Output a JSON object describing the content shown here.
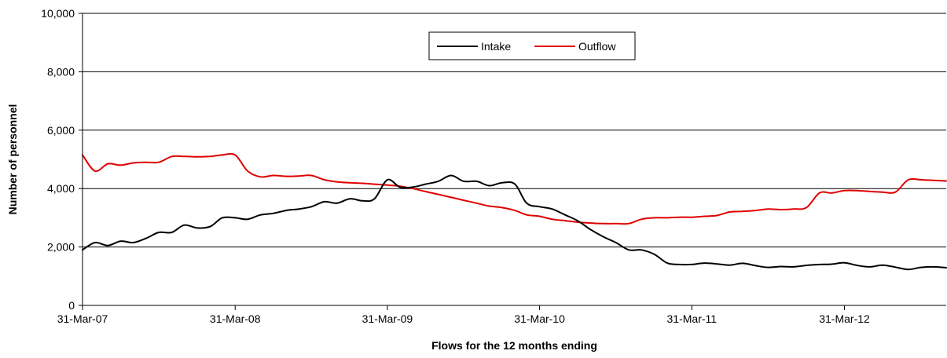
{
  "chart_data": {
    "type": "line",
    "title": "",
    "xlabel": "Flows for the 12 months ending",
    "ylabel": "Number of personnel",
    "ylim": [
      0,
      10000
    ],
    "yticks": [
      0,
      2000,
      4000,
      6000,
      8000,
      10000
    ],
    "ytick_labels": [
      "0",
      "2,000",
      "4,000",
      "6,000",
      "8,000",
      "10,000"
    ],
    "xlim": [
      "2007-03-31",
      "2012-11-30"
    ],
    "xticks": [
      "2007-03-31",
      "2008-03-31",
      "2009-03-31",
      "2010-03-31",
      "2011-03-31",
      "2012-03-31"
    ],
    "xtick_labels": [
      "31-Mar-07",
      "31-Mar-08",
      "31-Mar-09",
      "31-Mar-10",
      "31-Mar-11",
      "31-Mar-12"
    ],
    "grid": "horizontal",
    "legend_position": "top-center",
    "colors": {
      "Intake": "#000000",
      "Outflow": "#e00000"
    },
    "x": [
      "2007-03-31",
      "2007-04-30",
      "2007-05-31",
      "2007-06-30",
      "2007-07-31",
      "2007-08-31",
      "2007-09-30",
      "2007-10-31",
      "2007-11-30",
      "2007-12-31",
      "2008-01-31",
      "2008-02-29",
      "2008-03-31",
      "2008-04-30",
      "2008-05-31",
      "2008-06-30",
      "2008-07-31",
      "2008-08-31",
      "2008-09-30",
      "2008-10-31",
      "2008-11-30",
      "2008-12-31",
      "2009-01-31",
      "2009-02-28",
      "2009-03-31",
      "2009-04-30",
      "2009-05-31",
      "2009-06-30",
      "2009-07-31",
      "2009-08-31",
      "2009-09-30",
      "2009-10-31",
      "2009-11-30",
      "2009-12-31",
      "2010-01-31",
      "2010-02-28",
      "2010-03-31",
      "2010-04-30",
      "2010-05-31",
      "2010-06-30",
      "2010-07-31",
      "2010-08-31",
      "2010-09-30",
      "2010-10-31",
      "2010-11-30",
      "2010-12-31",
      "2011-01-31",
      "2011-02-28",
      "2011-03-31",
      "2011-04-30",
      "2011-05-31",
      "2011-06-30",
      "2011-07-31",
      "2011-08-31",
      "2011-09-30",
      "2011-10-31",
      "2011-11-30",
      "2011-12-31",
      "2012-01-31",
      "2012-02-29",
      "2012-03-31",
      "2012-04-30",
      "2012-05-31",
      "2012-06-30",
      "2012-07-31",
      "2012-08-31",
      "2012-09-30",
      "2012-10-31",
      "2012-11-30"
    ],
    "series": [
      {
        "name": "Intake",
        "values": [
          1900,
          2150,
          2050,
          2200,
          2150,
          2300,
          2500,
          2500,
          2750,
          2650,
          2700,
          3000,
          3000,
          2950,
          3100,
          3150,
          3250,
          3300,
          3380,
          3550,
          3500,
          3650,
          3580,
          3650,
          4300,
          4050,
          4050,
          4150,
          4250,
          4450,
          4250,
          4250,
          4100,
          4200,
          4150,
          3500,
          3380,
          3300,
          3100,
          2900,
          2600,
          2350,
          2150,
          1900,
          1900,
          1750,
          1450,
          1400,
          1400,
          1450,
          1420,
          1380,
          1440,
          1360,
          1300,
          1330,
          1320,
          1370,
          1400,
          1410,
          1460,
          1370,
          1320,
          1380,
          1310,
          1230,
          1300,
          1320,
          1290
        ]
      },
      {
        "name": "Outflow",
        "values": [
          5150,
          4600,
          4850,
          4800,
          4880,
          4900,
          4900,
          5100,
          5100,
          5090,
          5100,
          5150,
          5150,
          4600,
          4400,
          4450,
          4420,
          4430,
          4450,
          4300,
          4230,
          4200,
          4180,
          4150,
          4120,
          4080,
          4000,
          3900,
          3800,
          3700,
          3600,
          3500,
          3400,
          3350,
          3250,
          3100,
          3050,
          2950,
          2900,
          2850,
          2820,
          2800,
          2800,
          2800,
          2950,
          3000,
          3000,
          3020,
          3020,
          3050,
          3080,
          3200,
          3220,
          3250,
          3300,
          3280,
          3300,
          3350,
          3850,
          3850,
          3930,
          3930,
          3900,
          3880,
          3880,
          4300,
          4300,
          4280,
          4260
        ]
      }
    ]
  }
}
